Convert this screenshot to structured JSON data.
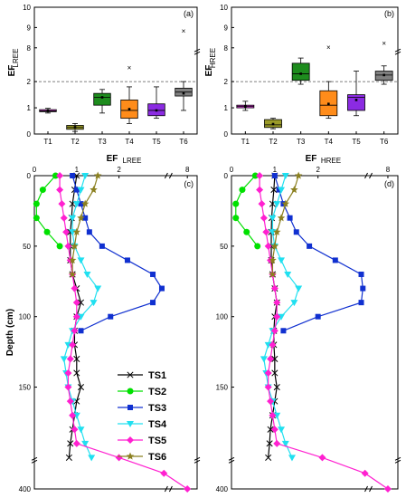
{
  "chart_data": [
    {
      "type": "box",
      "panel": "(a)",
      "ylabel": "EF",
      "ylabel_sub": "LREE",
      "categories": [
        "T1",
        "T2",
        "T3",
        "T4",
        "T5",
        "T6"
      ],
      "colors": [
        "#e040e0",
        "#9b9b28",
        "#1e8c1e",
        "#ff8c1a",
        "#8b2be2",
        "#808080"
      ],
      "boxes": [
        {
          "whislo": 0.8,
          "q1": 0.85,
          "med": 0.88,
          "q3": 0.93,
          "whishi": 0.98,
          "mean": 0.88
        },
        {
          "whislo": 0.1,
          "q1": 0.18,
          "med": 0.25,
          "q3": 0.33,
          "whishi": 0.4,
          "mean": 0.26
        },
        {
          "whislo": 0.8,
          "q1": 1.1,
          "med": 1.4,
          "q3": 1.55,
          "whishi": 1.7,
          "mean": 1.4
        },
        {
          "whislo": 0.4,
          "q1": 0.6,
          "med": 0.9,
          "q3": 1.3,
          "whishi": 1.8,
          "mean": 0.95
        },
        {
          "whislo": 0.6,
          "q1": 0.7,
          "med": 0.9,
          "q3": 1.15,
          "whishi": 1.8,
          "mean": 0.9
        },
        {
          "whislo": 0.9,
          "q1": 1.45,
          "med": 1.6,
          "q3": 1.75,
          "whishi": 2.0,
          "mean": 1.55
        }
      ],
      "outliers": [
        [
          3,
          2.5
        ],
        [
          5,
          8.8
        ]
      ],
      "ytick_labels": [
        "0",
        "1",
        "2",
        "8",
        "9",
        "10"
      ],
      "dashed_line": 2
    },
    {
      "type": "box",
      "panel": "(b)",
      "ylabel": "EF",
      "ylabel_sub": "HREE",
      "categories": [
        "T1",
        "T2",
        "T3",
        "T4",
        "T5",
        "T6"
      ],
      "colors": [
        "#e040e0",
        "#9b9b28",
        "#1e8c1e",
        "#ff8c1a",
        "#8b2be2",
        "#808080"
      ],
      "boxes": [
        {
          "whislo": 0.9,
          "q1": 1.0,
          "med": 1.05,
          "q3": 1.1,
          "whishi": 1.25,
          "mean": 1.05
        },
        {
          "whislo": 0.2,
          "q1": 0.25,
          "med": 0.35,
          "q3": 0.55,
          "whishi": 0.6,
          "mean": 0.38
        },
        {
          "whislo": 1.9,
          "q1": 2.05,
          "med": 2.3,
          "q3": 2.7,
          "whishi": 2.9,
          "mean": 2.3
        },
        {
          "whislo": 0.6,
          "q1": 0.7,
          "med": 1.1,
          "q3": 1.65,
          "whishi": 2.0,
          "mean": 1.15
        },
        {
          "whislo": 0.7,
          "q1": 0.9,
          "med": 1.4,
          "q3": 1.5,
          "whishi": 2.4,
          "mean": 1.3
        },
        {
          "whislo": 1.9,
          "q1": 2.05,
          "med": 2.25,
          "q3": 2.4,
          "whishi": 2.6,
          "mean": 2.25
        }
      ],
      "outliers": [
        [
          3,
          3.4
        ],
        [
          5,
          8.2
        ]
      ],
      "ytick_labels": [
        "0",
        "1",
        "2",
        "8",
        "9",
        "10"
      ],
      "dashed_line": 2
    },
    {
      "type": "line",
      "panel": "(c)",
      "xlabel": "EF",
      "xlabel_sub": "LREE",
      "ylabel": "Depth (cm)",
      "xtick_labels": [
        "0",
        "1",
        "2",
        "8"
      ],
      "ytick_labels": [
        "0",
        "50",
        "100",
        "150",
        "400"
      ],
      "series": [
        {
          "name": "TS1",
          "marker": "x",
          "color": "#000000",
          "x": [
            1.0,
            0.95,
            0.9,
            0.88,
            0.85,
            0.85,
            0.85,
            0.9,
            1.0,
            1.1,
            1.0,
            0.95,
            0.95,
            1.0,
            1.0,
            1.1,
            1.0,
            0.95,
            0.9,
            0.85,
            0.82
          ],
          "y": [
            0,
            10,
            20,
            30,
            40,
            50,
            60,
            70,
            80,
            90,
            100,
            110,
            120,
            130,
            140,
            150,
            160,
            170,
            180,
            190,
            200
          ]
        },
        {
          "name": "TS2",
          "marker": "circle",
          "color": "#00e000",
          "x": [
            0.5,
            0.2,
            0.05,
            0.05,
            0.3,
            0.6
          ],
          "y": [
            0,
            10,
            20,
            30,
            40,
            50
          ]
        },
        {
          "name": "TS3",
          "marker": "square",
          "color": "#1030d0",
          "x": [
            0.9,
            1.0,
            1.1,
            1.2,
            1.3,
            1.6,
            2.2,
            2.8,
            3.1,
            2.8,
            1.8,
            1.1
          ],
          "y": [
            0,
            10,
            20,
            30,
            40,
            50,
            60,
            70,
            80,
            90,
            100,
            110
          ]
        },
        {
          "name": "TS4",
          "marker": "triangle-down",
          "color": "#20e0f0",
          "x": [
            1.2,
            1.1,
            1.0,
            0.9,
            0.9,
            0.95,
            1.1,
            1.25,
            1.5,
            1.4,
            1.1,
            0.9,
            0.8,
            0.7,
            0.75,
            0.8,
            0.9,
            1.0,
            1.1,
            1.2,
            1.35
          ],
          "y": [
            0,
            10,
            20,
            30,
            40,
            50,
            60,
            70,
            80,
            90,
            100,
            110,
            120,
            130,
            140,
            150,
            160,
            170,
            180,
            190,
            200
          ]
        },
        {
          "name": "TS5",
          "marker": "diamond",
          "color": "#ff20d0",
          "x": [
            0.6,
            0.6,
            0.65,
            0.7,
            0.75,
            0.8,
            0.85,
            0.9,
            0.95,
            1.0,
            1.0,
            0.95,
            0.9,
            0.85,
            0.8,
            0.8,
            0.85,
            0.9,
            0.95,
            1.0,
            2.0,
            3.5,
            8.0
          ],
          "y": [
            0,
            10,
            20,
            30,
            40,
            50,
            60,
            70,
            80,
            90,
            100,
            110,
            120,
            130,
            140,
            150,
            160,
            170,
            180,
            190,
            200,
            300,
            400
          ]
        },
        {
          "name": "TS6",
          "marker": "star",
          "color": "#8b8020",
          "x": [
            1.5,
            1.4,
            1.2,
            1.1,
            1.0,
            0.95,
            0.9,
            0.9
          ],
          "y": [
            0,
            10,
            20,
            30,
            40,
            50,
            60,
            70
          ]
        }
      ]
    },
    {
      "type": "line",
      "panel": "(d)",
      "xlabel": "EF",
      "xlabel_sub": "HREE",
      "ylabel": "",
      "xtick_labels": [
        "0",
        "1",
        "2",
        "8"
      ],
      "ytick_labels": [
        "0",
        "50",
        "100",
        "150",
        "400"
      ],
      "series": [
        {
          "name": "TS1",
          "marker": "x",
          "color": "#000000",
          "x": [
            1.0,
            0.98,
            0.95,
            0.93,
            0.92,
            0.92,
            0.92,
            0.95,
            1.0,
            1.05,
            1.0,
            0.98,
            0.98,
            1.0,
            1.0,
            1.05,
            1.0,
            0.95,
            0.9,
            0.88,
            0.85
          ],
          "y": [
            0,
            10,
            20,
            30,
            40,
            50,
            60,
            70,
            80,
            90,
            100,
            110,
            120,
            130,
            140,
            150,
            160,
            170,
            180,
            190,
            200
          ]
        },
        {
          "name": "TS2",
          "marker": "circle",
          "color": "#00e000",
          "x": [
            0.55,
            0.25,
            0.1,
            0.1,
            0.35,
            0.6
          ],
          "y": [
            0,
            10,
            20,
            30,
            40,
            50
          ]
        },
        {
          "name": "TS3",
          "marker": "square",
          "color": "#1030d0",
          "x": [
            1.0,
            1.1,
            1.2,
            1.35,
            1.5,
            1.8,
            2.4,
            3.0,
            3.3,
            3.0,
            2.0,
            1.2
          ],
          "y": [
            0,
            10,
            20,
            30,
            40,
            50,
            60,
            70,
            80,
            90,
            100,
            110
          ]
        },
        {
          "name": "TS4",
          "marker": "triangle-down",
          "color": "#20e0f0",
          "x": [
            1.25,
            1.15,
            1.05,
            0.95,
            0.95,
            1.0,
            1.15,
            1.3,
            1.55,
            1.45,
            1.15,
            0.95,
            0.85,
            0.75,
            0.8,
            0.85,
            0.95,
            1.05,
            1.15,
            1.25,
            1.4
          ],
          "y": [
            0,
            10,
            20,
            30,
            40,
            50,
            60,
            70,
            80,
            90,
            100,
            110,
            120,
            130,
            140,
            150,
            160,
            170,
            180,
            190,
            200
          ]
        },
        {
          "name": "TS5",
          "marker": "diamond",
          "color": "#ff20d0",
          "x": [
            0.65,
            0.65,
            0.7,
            0.75,
            0.8,
            0.85,
            0.9,
            0.95,
            1.0,
            1.05,
            1.05,
            1.0,
            0.95,
            0.9,
            0.85,
            0.85,
            0.9,
            0.95,
            1.0,
            1.05,
            2.1,
            3.7,
            8.0
          ],
          "y": [
            0,
            10,
            20,
            30,
            40,
            50,
            60,
            70,
            80,
            90,
            100,
            110,
            120,
            130,
            140,
            150,
            160,
            170,
            180,
            190,
            200,
            300,
            400
          ]
        },
        {
          "name": "TS6",
          "marker": "star",
          "color": "#8b8020",
          "x": [
            1.55,
            1.45,
            1.25,
            1.15,
            1.05,
            1.0,
            0.95,
            0.95
          ],
          "y": [
            0,
            10,
            20,
            30,
            40,
            50,
            60,
            70
          ]
        }
      ]
    }
  ]
}
